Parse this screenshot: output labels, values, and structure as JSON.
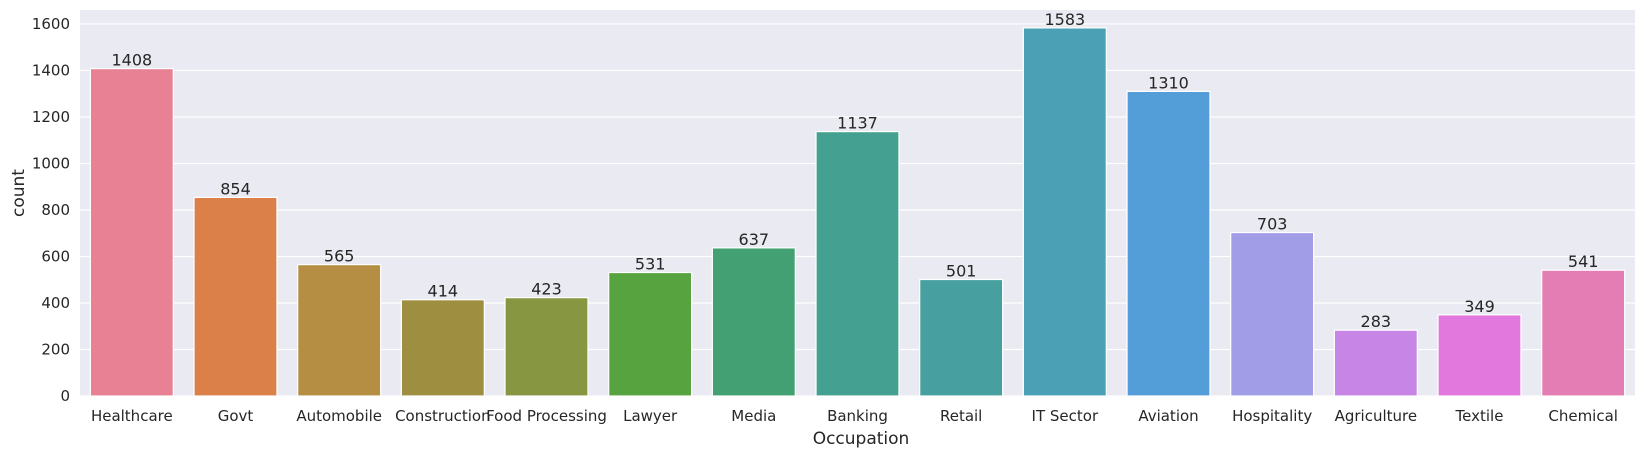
{
  "chart_data": {
    "type": "bar",
    "title": "",
    "xlabel": "Occupation",
    "ylabel": "count",
    "ylim": [
      0,
      1660
    ],
    "yticks": [
      0,
      200,
      400,
      600,
      800,
      1000,
      1200,
      1400,
      1600
    ],
    "grid": true,
    "categories": [
      "Healthcare",
      "Govt",
      "Automobile",
      "Construction",
      "Food Processing",
      "Lawyer",
      "Media",
      "Banking",
      "Retail",
      "IT Sector",
      "Aviation",
      "Hospitality",
      "Agriculture",
      "Textile",
      "Chemical"
    ],
    "values": [
      1408,
      854,
      565,
      414,
      423,
      531,
      637,
      1137,
      501,
      1583,
      1310,
      703,
      283,
      349,
      541
    ],
    "colors": [
      "#e88193",
      "#db8049",
      "#b58d43",
      "#9e8f40",
      "#879641",
      "#56a33f",
      "#42a073",
      "#44a090",
      "#47a09f",
      "#4ba0b5",
      "#539ed9",
      "#a29de7",
      "#c786e5",
      "#e277dd",
      "#e37db3"
    ]
  }
}
